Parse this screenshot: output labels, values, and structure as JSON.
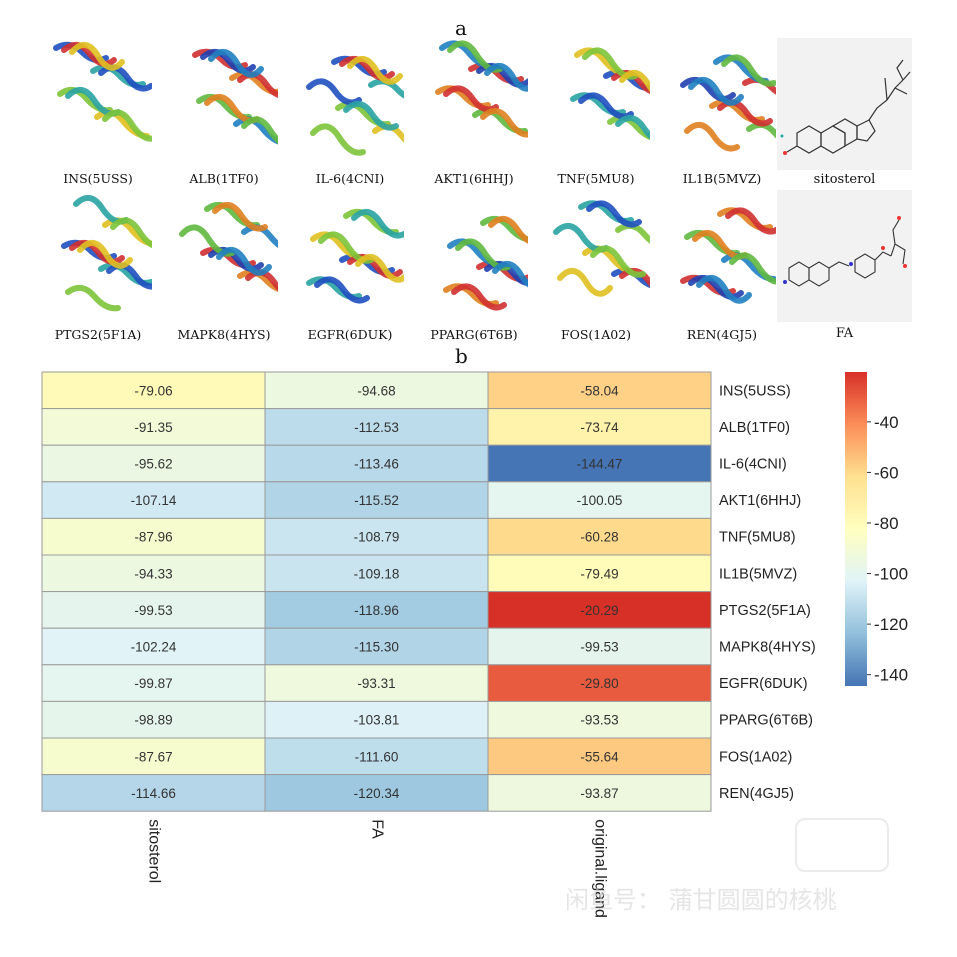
{
  "panel_a": {
    "label": "a",
    "structures": [
      {
        "caption": "INS(5USS)",
        "row": 0,
        "col": 0
      },
      {
        "caption": "ALB(1TF0)",
        "row": 0,
        "col": 1
      },
      {
        "caption": "IL-6(4CNI)",
        "row": 0,
        "col": 2
      },
      {
        "caption": "AKT1(6HHJ)",
        "row": 0,
        "col": 3
      },
      {
        "caption": "TNF(5MU8)",
        "row": 0,
        "col": 4
      },
      {
        "caption": "IL1B(5MVZ)",
        "row": 0,
        "col": 5
      },
      {
        "caption": "PTGS2(5F1A)",
        "row": 1,
        "col": 0
      },
      {
        "caption": "MAPK8(4HYS)",
        "row": 1,
        "col": 1
      },
      {
        "caption": "EGFR(6DUK)",
        "row": 1,
        "col": 2
      },
      {
        "caption": "PPARG(6T6B)",
        "row": 1,
        "col": 3
      },
      {
        "caption": "FOS(1A02)",
        "row": 1,
        "col": 4
      },
      {
        "caption": "REN(4GJ5)",
        "row": 1,
        "col": 5
      }
    ],
    "molecules": [
      {
        "caption": "sitosterol"
      },
      {
        "caption": "FA"
      }
    ]
  },
  "panel_b": {
    "label": "b"
  },
  "chart_data": {
    "type": "heatmap",
    "columns": [
      "sitosterol",
      "FA",
      "original.ligand"
    ],
    "rows": [
      "INS(5USS)",
      "ALB(1TF0)",
      "IL-6(4CNI)",
      "AKT1(6HHJ)",
      "TNF(5MU8)",
      "IL1B(5MVZ)",
      "PTGS2(5F1A)",
      "MAPK8(4HYS)",
      "EGFR(6DUK)",
      "PPARG(6T6B)",
      "FOS(1A02)",
      "REN(4GJ5)"
    ],
    "values": [
      [
        -79.06,
        -94.68,
        -58.04
      ],
      [
        -91.35,
        -112.53,
        -73.74
      ],
      [
        -95.62,
        -113.46,
        -144.47
      ],
      [
        -107.14,
        -115.52,
        -100.05
      ],
      [
        -87.96,
        -108.79,
        -60.28
      ],
      [
        -94.33,
        -109.18,
        -79.49
      ],
      [
        -99.53,
        -118.96,
        -20.29
      ],
      [
        -102.24,
        -115.3,
        -99.53
      ],
      [
        -99.87,
        -93.31,
        -29.8
      ],
      [
        -98.89,
        -103.81,
        -93.53
      ],
      [
        -87.67,
        -111.6,
        -55.64
      ],
      [
        -114.66,
        -120.34,
        -93.87
      ]
    ],
    "value_labels": [
      [
        "-79.06",
        "-94.68",
        "-58.04"
      ],
      [
        "-91.35",
        "-112.53",
        "-73.74"
      ],
      [
        "-95.62",
        "-113.46",
        "-144.47"
      ],
      [
        "-107.14",
        "-115.52",
        "-100.05"
      ],
      [
        "-87.96",
        "-108.79",
        "-60.28"
      ],
      [
        "-94.33",
        "-109.18",
        "-79.49"
      ],
      [
        "-99.53",
        "-118.96",
        "-20.29"
      ],
      [
        "-102.24",
        "-115.30",
        "-99.53"
      ],
      [
        "-99.87",
        "-93.31",
        "-29.80"
      ],
      [
        "-98.89",
        "-103.81",
        "-93.53"
      ],
      [
        "-87.67",
        "-111.60",
        "-55.64"
      ],
      [
        "-114.66",
        "-120.34",
        "-93.87"
      ]
    ],
    "color_scale": {
      "min": -144.47,
      "max": -20.29,
      "stops": [
        "#4575b4",
        "#91bfdb",
        "#e0f3f8",
        "#ffffbf",
        "#fee090",
        "#fc8d59",
        "#d73027"
      ],
      "ticks": [
        "-40",
        "-60",
        "-80",
        "-100",
        "-120",
        "-140"
      ],
      "tick_values": [
        -40,
        -60,
        -80,
        -100,
        -120,
        -140
      ]
    },
    "legend": "right"
  },
  "watermark": {
    "line": "闲鱼号： 蒲甘圆圆的核桃"
  },
  "colors": {
    "text": "#222222",
    "grid": "#9a9a9a"
  }
}
